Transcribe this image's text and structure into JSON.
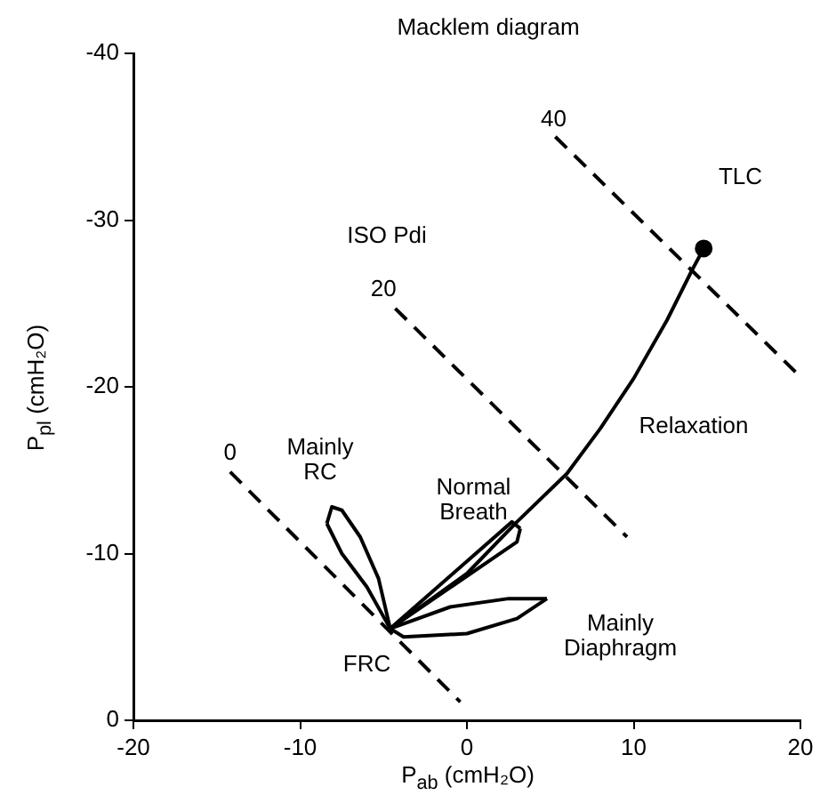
{
  "chart_data": {
    "type": "line",
    "title": "Macklem diagram",
    "xlabel": "P$_{ab}$ (cmH₂O)",
    "ylabel": "P$_{pl}$ (cmH₂O)",
    "xlim": [
      -20,
      20
    ],
    "xticks": [
      -20,
      -10,
      0,
      10,
      20
    ],
    "ylim": [
      0,
      -40
    ],
    "yticks": [
      0,
      -10,
      -20,
      -30,
      -40
    ],
    "grid": false,
    "legend": false,
    "marker": "none",
    "series": [
      {
        "line_style": "dashed",
        "color": "#000000",
        "x": [
          -14.2,
          -0.4
        ],
        "values": [
          -14.9,
          -1.1
        ]
      },
      {
        "line_style": "dashed",
        "color": "#000000",
        "x": [
          -4.3,
          9.6
        ],
        "values": [
          -24.7,
          -11.0
        ]
      },
      {
        "line_style": "dashed",
        "color": "#000000",
        "x": [
          5.3,
          20
        ],
        "values": [
          -35.0,
          -20.6
        ]
      },
      {
        "color": "#000000",
        "x": [
          -4.6,
          0,
          3,
          6,
          8,
          10,
          12,
          13.5,
          14.2
        ],
        "values": [
          -5.5,
          -8.8,
          -11.9,
          -14.8,
          -17.5,
          -20.5,
          -24,
          -27,
          -28.3
        ]
      },
      {
        "color": "#000000",
        "x": [
          -8.4,
          -8.1,
          -7.5,
          -6.4,
          -5.3,
          -4.6
        ],
        "values": [
          -11.8,
          -12.8,
          -12.6,
          -11.0,
          -8.5,
          -5.5
        ]
      },
      {
        "color": "#000000",
        "x": [
          -8.4,
          -7.5,
          -6.0,
          -4.6
        ],
        "values": [
          -11.8,
          -10.0,
          -8.0,
          -5.5
        ]
      },
      {
        "color": "#000000",
        "x": [
          -4.6,
          2.7,
          3.2
        ],
        "values": [
          -5.5,
          -11.9,
          -11.5
        ]
      },
      {
        "color": "#000000",
        "x": [
          -4.6,
          3.0,
          3.2
        ],
        "values": [
          -5.5,
          -10.7,
          -11.5
        ]
      },
      {
        "color": "#000000",
        "x": [
          -4.6,
          -1,
          2.5,
          4.8
        ],
        "values": [
          -5.5,
          -6.8,
          -7.3,
          -7.3
        ]
      },
      {
        "color": "#000000",
        "x": [
          -4.6,
          -3.8,
          0,
          3,
          4.8
        ],
        "values": [
          -5.5,
          -5.0,
          -5.2,
          -6.1,
          -7.3
        ]
      },
      {
        "type": "scatter",
        "marker": "circle",
        "color": "#000000",
        "x": [
          14.2
        ],
        "values": [
          -28.3
        ]
      }
    ],
    "annotations": [
      "0",
      "20",
      "40",
      "ISO Pdi",
      "TLC",
      "Relaxation",
      "Mainly\nRC",
      "Normal\nBreath",
      "FRC",
      "Mainly\nDiaphragm"
    ]
  }
}
